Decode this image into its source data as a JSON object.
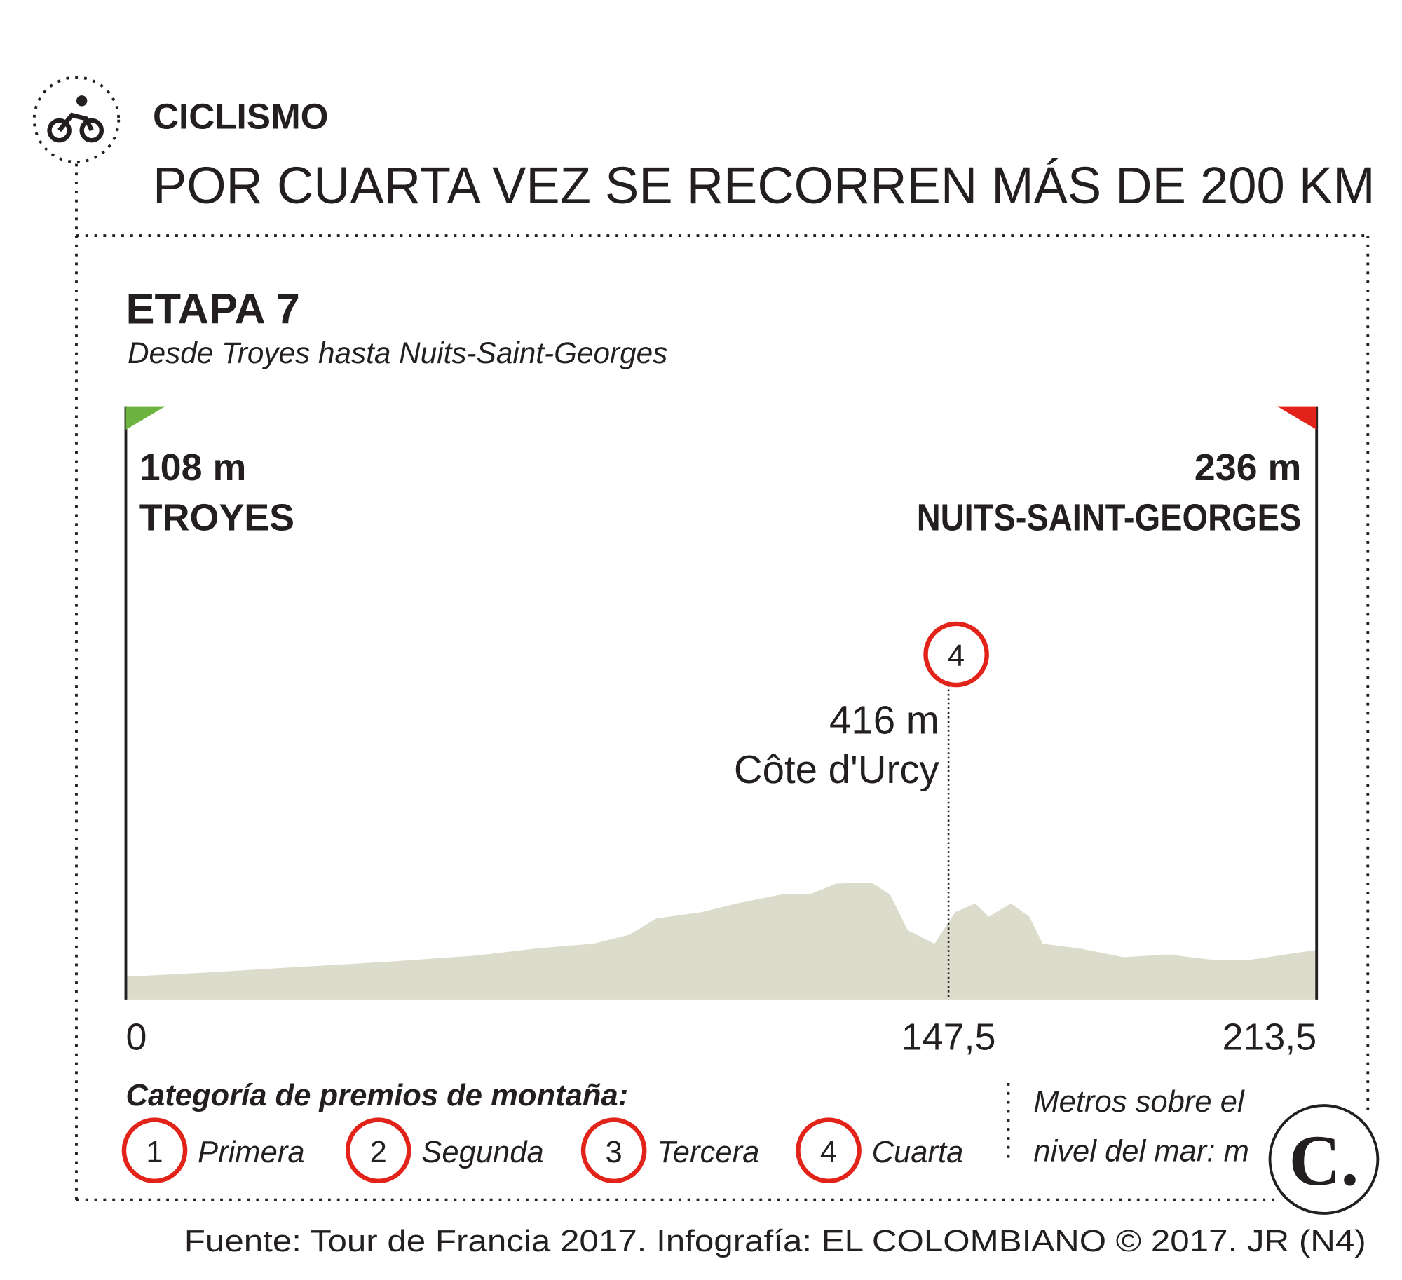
{
  "header": {
    "section": "CICLISMO",
    "headline": "POR CUARTA VEZ SE RECORREN MÁS DE 200 KM"
  },
  "chart_data": {
    "type": "area",
    "title": "ETAPA 7",
    "subtitle": "Desde Troyes hasta Nuits-Saint-Georges",
    "color": "#dcdccc",
    "x": [
      0,
      14.5,
      30.6,
      46.7,
      62.8,
      74.1,
      83.8,
      90.3,
      95.1,
      103.2,
      109.6,
      117.7,
      122.6,
      127.4,
      133.7,
      137,
      140.2,
      145,
      148.7,
      152.3,
      154.7,
      158.7,
      162,
      164.4,
      170.8,
      178.9,
      187,
      195,
      201.4,
      213.5
    ],
    "values": [
      108,
      128,
      154,
      179,
      209,
      244,
      265,
      308,
      385,
      415,
      457,
      500,
      500,
      551,
      556,
      500,
      329,
      265,
      415,
      457,
      393,
      457,
      393,
      265,
      244,
      201,
      214,
      188,
      188,
      236
    ],
    "xlim": [
      0,
      213.5
    ],
    "ylim": [
      0,
      2820
    ],
    "xticks": [
      0,
      {
        "value": 147.5,
        "label": "147,5"
      },
      {
        "value": 213.5,
        "label": "213,5"
      }
    ],
    "start": {
      "elevation": "108 m",
      "name": "TROYES"
    },
    "finish": {
      "elevation": "236 m",
      "name": "NUITS-SAINT-GEORGES"
    },
    "climb": {
      "category": "4",
      "elevation": "416 m",
      "name": "Côte d'Urcy"
    },
    "legend": {
      "title": "Categoría de premios de montaña:",
      "items": [
        {
          "number": "1",
          "label": "Primera"
        },
        {
          "number": "2",
          "label": "Segunda"
        },
        {
          "number": "3",
          "label": "Tercera"
        },
        {
          "number": "4",
          "label": "Cuarta"
        }
      ],
      "unit_note": [
        "Metros sobre el",
        "nivel del mar: m"
      ]
    }
  },
  "footer": {
    "source": "Fuente: Tour de Francia 2017. Infografía: EL COLOMBIANO © 2017. JR (N4)",
    "logo": "C."
  }
}
